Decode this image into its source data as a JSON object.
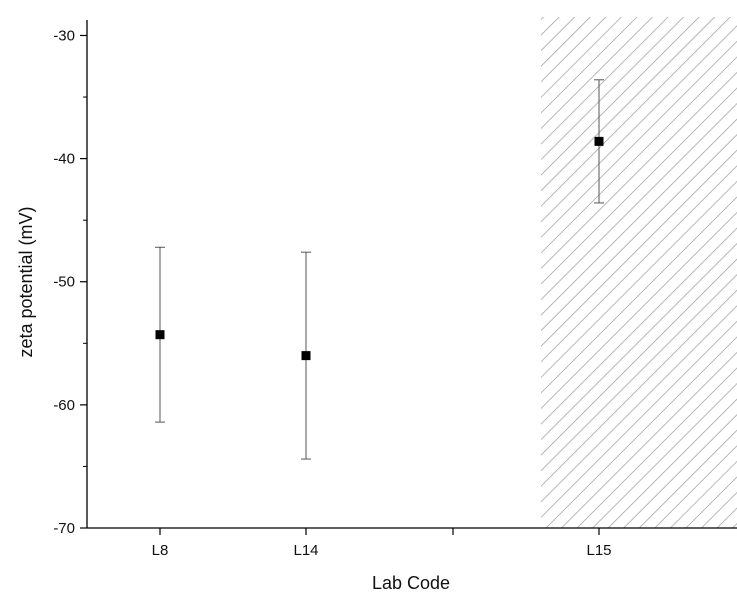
{
  "chart_data": {
    "type": "scatter",
    "title": "",
    "xlabel": "Lab Code",
    "ylabel": "zeta potential (mV)",
    "ylim": [
      -70,
      -28.5
    ],
    "yticks": [
      -30,
      -40,
      -50,
      -60,
      -70
    ],
    "ytick_labels": [
      "-30",
      "-40",
      "-50",
      "-60",
      "-70"
    ],
    "minor_y_step": 5,
    "categories": [
      "L8",
      "L14",
      "",
      "L15"
    ],
    "grid": false,
    "legend": "none",
    "marker": "square",
    "marker_color": "#000000",
    "points": [
      {
        "x": "L8",
        "y": -54.3,
        "err_low": -61.4,
        "err_high": -47.2
      },
      {
        "x": "L14",
        "y": -56.0,
        "err_low": -64.4,
        "err_high": -47.6
      },
      {
        "x": "L15",
        "y": -38.6,
        "err_low": -43.6,
        "err_high": -33.6
      }
    ],
    "shaded_region": {
      "from_category": "L15",
      "pattern": "diagonal-hatch",
      "color": "#9a9a9a"
    }
  }
}
